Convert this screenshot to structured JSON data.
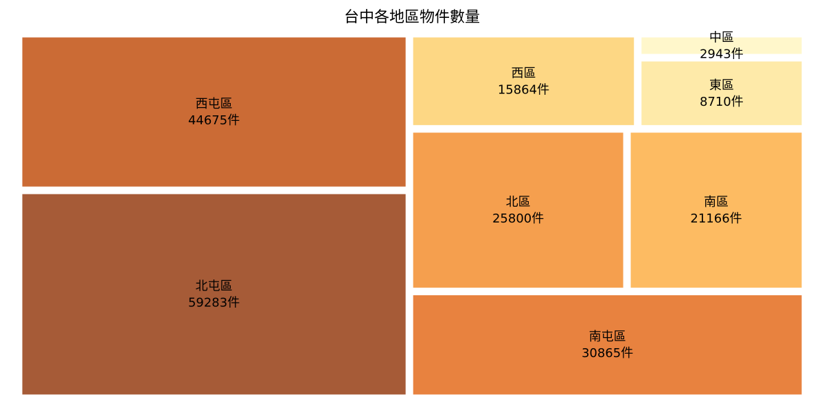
{
  "chart_data": {
    "type": "treemap",
    "title": "台中各地區物件數量",
    "unit": "件",
    "items": [
      {
        "name": "北屯區",
        "value": 59283,
        "color": "#a65b37"
      },
      {
        "name": "西屯區",
        "value": 44675,
        "color": "#cb6b35"
      },
      {
        "name": "南屯區",
        "value": 30865,
        "color": "#e8823f"
      },
      {
        "name": "北區",
        "value": 25800,
        "color": "#f59f4e"
      },
      {
        "name": "南區",
        "value": 21166,
        "color": "#fdbb62"
      },
      {
        "name": "西區",
        "value": 15864,
        "color": "#fdd784"
      },
      {
        "name": "東區",
        "value": 8710,
        "color": "#feeaa9"
      },
      {
        "name": "中區",
        "value": 2943,
        "color": "#fff7cb"
      }
    ]
  }
}
